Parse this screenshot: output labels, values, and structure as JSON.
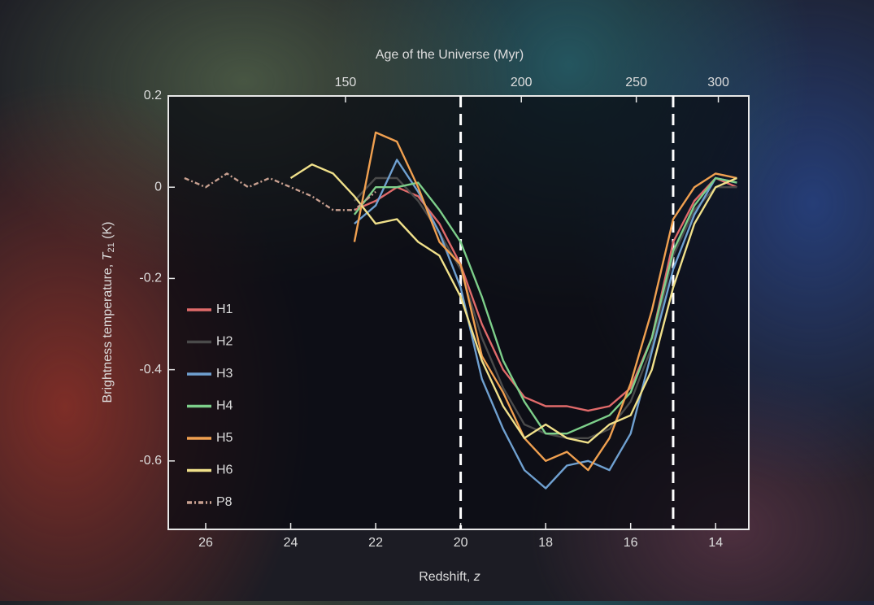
{
  "chart_data": {
    "type": "line",
    "xlabel": [
      "Redshift, ",
      "z"
    ],
    "ylabel": [
      "Brightness temperature, ",
      "T",
      "21",
      " (K)"
    ],
    "x2label": "Age of the Universe (Myr)",
    "x": [
      26.5,
      26,
      25.5,
      25,
      24.5,
      24,
      23.5,
      23,
      22.5,
      22,
      21.5,
      21,
      20.5,
      20,
      19.5,
      19,
      18.5,
      18,
      17.5,
      17,
      16.5,
      16,
      15.5,
      15,
      14.5,
      14,
      13.5
    ],
    "xlim": [
      26.88,
      13.22
    ],
    "ylim": [
      -0.75,
      0.2
    ],
    "xticks": [
      26,
      24,
      22,
      20,
      18,
      16,
      14
    ],
    "yticks": [
      0.2,
      0,
      -0.2,
      -0.4,
      -0.6
    ],
    "x2ticks": [
      150,
      200,
      250,
      300
    ],
    "vlines": [
      20,
      15
    ],
    "series": [
      {
        "name": "H1",
        "color": "#e06a6a",
        "values": [
          null,
          null,
          null,
          null,
          null,
          null,
          null,
          null,
          -0.05,
          -0.03,
          0.0,
          -0.02,
          -0.08,
          -0.17,
          -0.3,
          -0.4,
          -0.46,
          -0.48,
          -0.48,
          -0.49,
          -0.48,
          -0.44,
          -0.33,
          -0.12,
          -0.03,
          0.02,
          0.0
        ]
      },
      {
        "name": "H2",
        "color": "#4a4a4a",
        "values": [
          null,
          null,
          null,
          null,
          null,
          null,
          null,
          null,
          -0.03,
          0.02,
          0.02,
          -0.03,
          -0.1,
          -0.18,
          -0.33,
          -0.44,
          -0.52,
          -0.54,
          -0.55,
          -0.55,
          -0.53,
          -0.47,
          -0.35,
          -0.15,
          -0.05,
          0.0,
          0.0
        ]
      },
      {
        "name": "H3",
        "color": "#6fa0d0",
        "values": [
          null,
          null,
          null,
          null,
          null,
          null,
          null,
          null,
          -0.08,
          -0.04,
          0.06,
          -0.01,
          -0.1,
          -0.22,
          -0.42,
          -0.53,
          -0.62,
          -0.66,
          -0.61,
          -0.6,
          -0.62,
          -0.54,
          -0.36,
          -0.18,
          -0.06,
          0.02,
          0.01
        ]
      },
      {
        "name": "H4",
        "color": "#7dcf8a",
        "values": [
          null,
          null,
          null,
          null,
          null,
          null,
          null,
          null,
          -0.06,
          0.0,
          0.0,
          0.01,
          -0.05,
          -0.12,
          -0.24,
          -0.38,
          -0.47,
          -0.54,
          -0.54,
          -0.52,
          -0.5,
          -0.45,
          -0.33,
          -0.14,
          -0.04,
          0.02,
          0.01
        ]
      },
      {
        "name": "H5",
        "color": "#f0a050",
        "values": [
          null,
          null,
          null,
          null,
          null,
          null,
          null,
          null,
          -0.12,
          0.12,
          0.1,
          0.0,
          -0.12,
          -0.17,
          -0.37,
          -0.45,
          -0.55,
          -0.6,
          -0.58,
          -0.62,
          -0.55,
          -0.43,
          -0.27,
          -0.07,
          0.0,
          0.03,
          0.02
        ]
      },
      {
        "name": "H6",
        "color": "#f0e08a",
        "values": [
          null,
          null,
          null,
          null,
          null,
          0.02,
          0.05,
          0.03,
          -0.02,
          -0.08,
          -0.07,
          -0.12,
          -0.15,
          -0.24,
          -0.38,
          -0.48,
          -0.55,
          -0.52,
          -0.55,
          -0.56,
          -0.52,
          -0.5,
          -0.4,
          -0.22,
          -0.08,
          0.0,
          0.02
        ]
      },
      {
        "name": "P8",
        "color": "#c8a090",
        "dash": true,
        "values": [
          0.02,
          0.0,
          0.03,
          0.0,
          0.02,
          0.0,
          -0.02,
          -0.05,
          -0.05,
          -0.01,
          null,
          null,
          null,
          null,
          null,
          null,
          null,
          null,
          null,
          null,
          null,
          null,
          null,
          null,
          null,
          null,
          null
        ]
      }
    ]
  }
}
